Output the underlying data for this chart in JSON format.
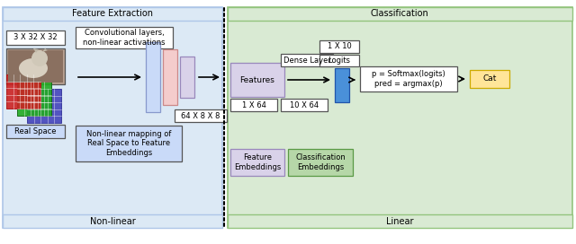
{
  "fig_width": 6.4,
  "fig_height": 2.72,
  "dpi": 100,
  "bg_color": "#ffffff",
  "left_panel_bg": "#dce9f5",
  "right_panel_bg": "#d9ead3",
  "left_panel_label": "Feature Extraction",
  "right_panel_label": "Classification",
  "left_footer_label": "Non-linear",
  "right_footer_label": "Linear",
  "label_3x32": "3 X 32 X 32",
  "label_64x8x8": "64 X 8 X 8",
  "label_conv": "Convolutional layers,\nnon-linear activations",
  "label_nonlinear_mapping": "Non-linear mapping of\nReal Space to Feature\nEmbeddings",
  "label_real_space": "Real Space",
  "label_features": "Features",
  "label_1x64": "1 X 64",
  "label_dense_layer": "Dense Layer",
  "label_1x10": "1 X 10",
  "label_logits": "Logits",
  "label_10x64": "10 X 64",
  "label_softmax": "p = Softmax(logits)\npred = argmax(p)",
  "label_cat": "Cat",
  "label_feat_embed": "Feature\nEmbeddings",
  "label_class_embed": "Classification\nEmbeddings",
  "col_blue_light": "#c9daf8",
  "col_red_light": "#f4cccc",
  "col_purple_light": "#d9d2e9",
  "col_teal_blue": "#4a90d9",
  "col_yellow": "#ffe599",
  "col_green_light": "#b6d7a8",
  "col_green_embed": "#93c47d"
}
